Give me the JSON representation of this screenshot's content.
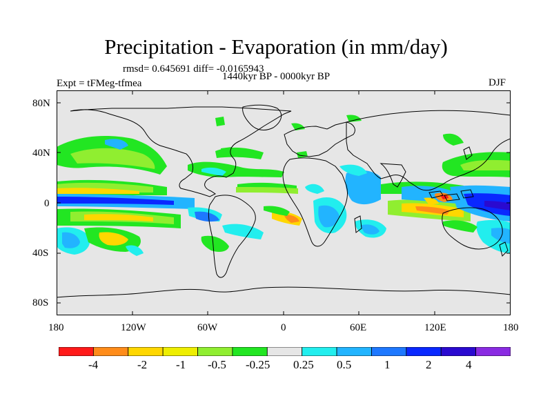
{
  "title": "Precipitation - Evaporation (in mm/day)",
  "stats_text": "rmsd= 0.645691  diff= -0.0165943",
  "period_text": "1440kyr BP - 0000kyr BP",
  "experiment_text": "Expt = tFMeg-tfmea",
  "season_text": "DJF",
  "axes": {
    "y_ticks": [
      "80N",
      "40N",
      "0",
      "40S",
      "80S"
    ],
    "x_ticks": [
      "180",
      "120W",
      "60W",
      "0",
      "60E",
      "120E",
      "180"
    ]
  },
  "colorbar": {
    "labels": [
      "-4",
      "-2",
      "-1",
      "-0.5",
      "-0.25",
      "0.25",
      "0.5",
      "1",
      "2",
      "4"
    ],
    "colors": [
      "#ff1a1a",
      "#ff8c1a",
      "#ffd700",
      "#eeee00",
      "#90ee30",
      "#22e622",
      "#e6e6e6",
      "#22eeee",
      "#22b4ff",
      "#1e78ff",
      "#0a28ff",
      "#2a0ad0",
      "#8a2be2"
    ]
  },
  "colors": {
    "background_field": "#e6e6e6",
    "coastline": "#000000"
  }
}
